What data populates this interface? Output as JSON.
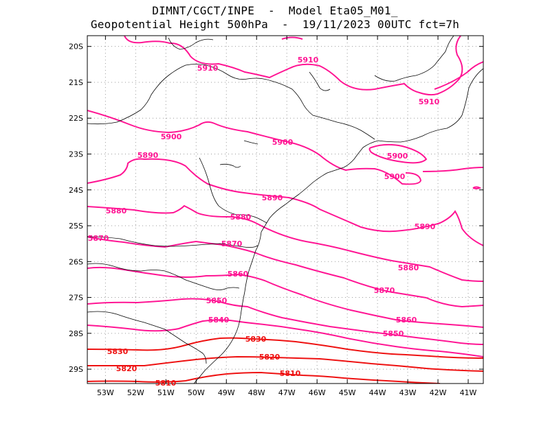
{
  "header": {
    "line1": "DIMNT/CGCT/INPE  -  Model Eta05_M01_",
    "line2": "Geopotential Height 500hPa  -  19/11/2023 00UTC fct=7h"
  },
  "axes": {
    "x_ticks": [
      "53W",
      "52W",
      "51W",
      "50W",
      "49W",
      "48W",
      "47W",
      "46W",
      "45W",
      "44W",
      "43W",
      "42W",
      "41W"
    ],
    "y_ticks": [
      "20S",
      "21S",
      "22S",
      "23S",
      "24S",
      "25S",
      "26S",
      "27S",
      "28S",
      "29S"
    ],
    "lon_range": [
      -53.6,
      -40.5
    ],
    "lat_range": [
      -29.4,
      -19.7
    ],
    "grid": "dotted"
  },
  "colors": {
    "contour_high": "#ff1493",
    "contour_low": "#ee1111",
    "coast": "#000000",
    "grid": "#999999"
  },
  "chart_data": {
    "type": "contour",
    "variable": "Geopotential Height 500hPa",
    "levels": [
      5810,
      5820,
      5830,
      5840,
      5850,
      5860,
      5870,
      5880,
      5890,
      5900,
      5910
    ],
    "contours": [
      {
        "level": 5910,
        "label": "5910",
        "label_color": "#ff1493"
      },
      {
        "level": 5910,
        "label": "5910",
        "label_color": "#ff1493"
      },
      {
        "level": 5910,
        "label": "5910",
        "label_color": "#ff1493"
      },
      {
        "level": 5900,
        "label": "5900",
        "label_color": "#ff1493"
      },
      {
        "level": 5900,
        "label": "5900",
        "label_color": "#ff1493"
      },
      {
        "level": 5900,
        "label": "5900",
        "label_color": "#ff1493"
      },
      {
        "level": 5900,
        "label": "5900",
        "label_color": "#ff1493"
      },
      {
        "level": 5890,
        "label": "5890",
        "label_color": "#ff1493"
      },
      {
        "level": 5890,
        "label": "5890",
        "label_color": "#ff1493"
      },
      {
        "level": 5890,
        "label": "5890",
        "label_color": "#ff1493"
      },
      {
        "level": 5880,
        "label": "5880",
        "label_color": "#ff1493"
      },
      {
        "level": 5880,
        "label": "5880",
        "label_color": "#ff1493"
      },
      {
        "level": 5880,
        "label": "5880",
        "label_color": "#ff1493"
      },
      {
        "level": 5870,
        "label": "5870",
        "label_color": "#ff1493"
      },
      {
        "level": 5870,
        "label": "5870",
        "label_color": "#ff1493"
      },
      {
        "level": 5870,
        "label": "5870",
        "label_color": "#ff1493"
      },
      {
        "level": 5860,
        "label": "5860",
        "label_color": "#ff1493"
      },
      {
        "level": 5860,
        "label": "5860",
        "label_color": "#ff1493"
      },
      {
        "level": 5850,
        "label": "5850",
        "label_color": "#ff1493"
      },
      {
        "level": 5850,
        "label": "5850",
        "label_color": "#ff1493"
      },
      {
        "level": 5840,
        "label": "5840",
        "label_color": "#ff1493"
      },
      {
        "level": 5830,
        "label": "5830",
        "label_color": "#ee1111"
      },
      {
        "level": 5830,
        "label": "5830",
        "label_color": "#ee1111"
      },
      {
        "level": 5820,
        "label": "5820",
        "label_color": "#ee1111"
      },
      {
        "level": 5820,
        "label": "5820",
        "label_color": "#ee1111"
      },
      {
        "level": 5810,
        "label": "5810",
        "label_color": "#ee1111"
      },
      {
        "level": 5810,
        "label": "5810",
        "label_color": "#ee1111"
      }
    ]
  }
}
